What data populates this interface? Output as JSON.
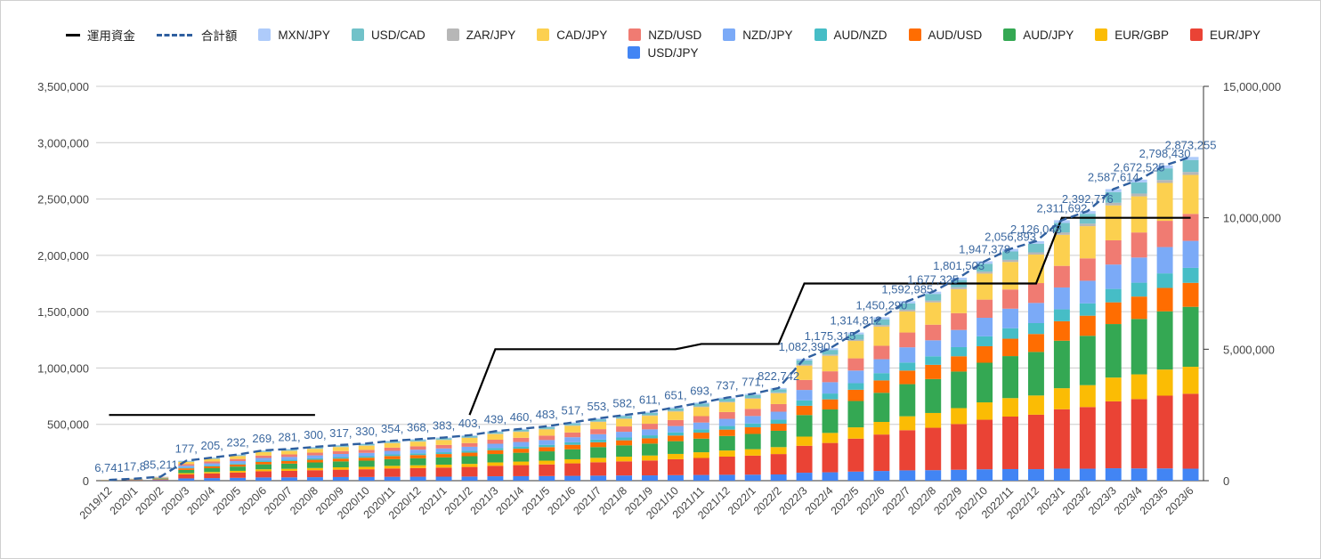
{
  "chart_data": {
    "type": "bar",
    "stacked": true,
    "categories": [
      "2019/12",
      "2020/1",
      "2020/2",
      "2020/3",
      "2020/4",
      "2020/5",
      "2020/6",
      "2020/7",
      "2020/8",
      "2020/9",
      "2020/10",
      "2020/11",
      "2020/12",
      "2021/1",
      "2021/2",
      "2021/3",
      "2021/4",
      "2021/5",
      "2021/6",
      "2021/7",
      "2021/8",
      "2021/9",
      "2021/10",
      "2021/11",
      "2021/12",
      "2022/1",
      "2022/2",
      "2022/3",
      "2022/4",
      "2022/5",
      "2022/6",
      "2022/7",
      "2022/8",
      "2022/9",
      "2022/10",
      "2022/11",
      "2022/12",
      "2023/1",
      "2023/2",
      "2023/3",
      "2023/4",
      "2023/5",
      "2023/6"
    ],
    "left_axis": {
      "min": 0,
      "max": 3500000,
      "ticks": [
        "0",
        "500,000",
        "1,000,000",
        "1,500,000",
        "2,000,000",
        "2,500,000",
        "3,000,000",
        "3,500,000"
      ]
    },
    "right_axis": {
      "min": 0,
      "max": 15000000,
      "ticks": [
        "0",
        "5,000,000",
        "10,000,000",
        "15,000,000"
      ]
    },
    "gridlines": true,
    "legend_position": "top",
    "stack_series": [
      {
        "name": "USD/JPY",
        "color": "#4285f4"
      },
      {
        "name": "EUR/JPY",
        "color": "#ea4335"
      },
      {
        "name": "EUR/GBP",
        "color": "#fbbc04"
      },
      {
        "name": "AUD/JPY",
        "color": "#34a853"
      },
      {
        "name": "AUD/USD",
        "color": "#ff6d01"
      },
      {
        "name": "AUD/NZD",
        "color": "#46bdc6"
      },
      {
        "name": "NZD/JPY",
        "color": "#7baaf7"
      },
      {
        "name": "NZD/USD",
        "color": "#f07b72"
      },
      {
        "name": "CAD/JPY",
        "color": "#fcd04f"
      },
      {
        "name": "ZAR/JPY",
        "color": "#b7b7b7"
      },
      {
        "name": "USD/CAD",
        "color": "#71c2c9"
      },
      {
        "name": "MXN/JPY",
        "color": "#aecbfa"
      }
    ],
    "totals": [
      6741,
      17800,
      35211,
      177000,
      205000,
      232000,
      269000,
      281000,
      300000,
      317000,
      330000,
      354000,
      368000,
      383000,
      403000,
      439000,
      460000,
      483000,
      517000,
      553000,
      582000,
      611000,
      651000,
      693000,
      737000,
      771000,
      822742,
      1082390,
      1175315,
      1314812,
      1450290,
      1592985,
      1677325,
      1801503,
      1947378,
      2056893,
      2126048,
      2311692,
      2392776,
      2587614,
      2672525,
      2798430,
      2873255
    ],
    "total_labels": [
      "6,741",
      "17,8",
      "35,211",
      "177,",
      "205,",
      "232,",
      "269,",
      "281,",
      "300,",
      "317,",
      "330,",
      "354,",
      "368,",
      "383,",
      "403,",
      "439,",
      "460,",
      "483,",
      "517,",
      "553,",
      "582,",
      "611,",
      "651,",
      "693,",
      "737,",
      "771,",
      "822,742",
      "1,082,390",
      "1,175,315",
      "1,314,812",
      "1,450,290",
      "1,592,985",
      "1,677,325",
      "1,801,503",
      "1,947,378",
      "2,056,893",
      "2,126,048",
      "2,311,692",
      "2,392,776",
      "2,587,614",
      "2,672,525",
      "2,798,430",
      "2,873,255"
    ],
    "capital": {
      "name": "運用資金",
      "color": "#000000",
      "values": [
        2500000,
        2500000,
        2500000,
        2500000,
        2500000,
        2500000,
        2500000,
        2500000,
        2500000,
        null,
        null,
        null,
        null,
        null,
        2500000,
        5000000,
        5000000,
        5000000,
        5000000,
        5000000,
        5000000,
        5000000,
        5000000,
        5200000,
        5200000,
        5200000,
        5200000,
        7500000,
        7500000,
        7500000,
        7500000,
        7500000,
        7500000,
        7500000,
        7500000,
        7500000,
        7500000,
        10000000,
        10000000,
        10000000,
        10000000,
        10000000,
        10000000
      ]
    },
    "total_line": {
      "name": "合計額",
      "color": "#2f5f9f"
    }
  },
  "legend_items": [
    {
      "label": "運用資金",
      "kind": "line",
      "color": "#000000"
    },
    {
      "label": "合計額",
      "kind": "dash",
      "color": "#2f5f9f"
    },
    {
      "label": "MXN/JPY",
      "kind": "box",
      "color": "#aecbfa"
    },
    {
      "label": "USD/CAD",
      "kind": "box",
      "color": "#71c2c9"
    },
    {
      "label": "ZAR/JPY",
      "kind": "box",
      "color": "#b7b7b7"
    },
    {
      "label": "CAD/JPY",
      "kind": "box",
      "color": "#fcd04f"
    },
    {
      "label": "NZD/USD",
      "kind": "box",
      "color": "#f07b72"
    },
    {
      "label": "NZD/JPY",
      "kind": "box",
      "color": "#7baaf7"
    },
    {
      "label": "AUD/NZD",
      "kind": "box",
      "color": "#46bdc6"
    },
    {
      "label": "AUD/USD",
      "kind": "box",
      "color": "#ff6d01"
    },
    {
      "label": "AUD/JPY",
      "kind": "box",
      "color": "#34a853"
    },
    {
      "label": "EUR/GBP",
      "kind": "box",
      "color": "#fbbc04"
    },
    {
      "label": "EUR/JPY",
      "kind": "box",
      "color": "#ea4335"
    },
    {
      "label": "USD/JPY",
      "kind": "box",
      "color": "#4285f4"
    }
  ]
}
